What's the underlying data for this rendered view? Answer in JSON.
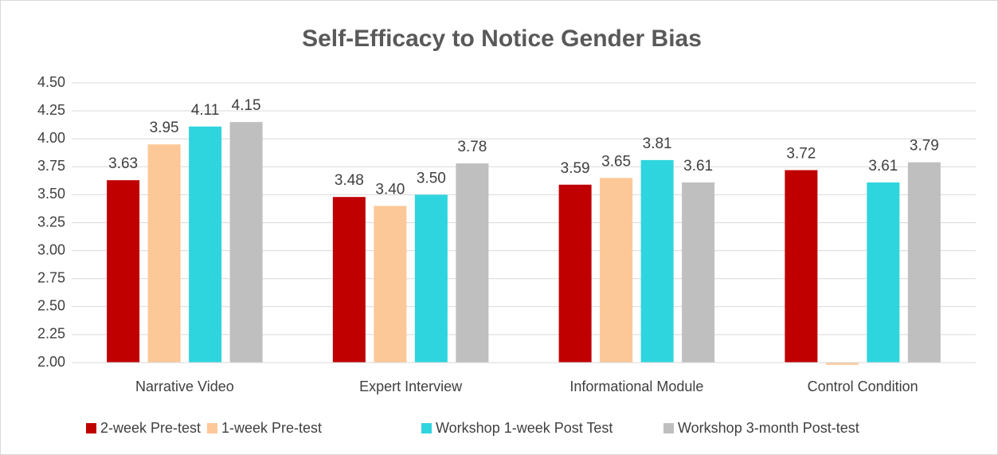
{
  "chart_data": {
    "type": "bar",
    "title": "Self-Efficacy to Notice Gender Bias",
    "categories": [
      "Narrative Video",
      "Expert Interview",
      "Informational Module",
      "Control Condition"
    ],
    "series": [
      {
        "name": "2-week Pre-test",
        "color": "#c00000",
        "values": [
          3.63,
          3.48,
          3.59,
          3.72
        ],
        "value_labels": [
          "3.63",
          "3.48",
          "3.59",
          "3.72"
        ]
      },
      {
        "name": "1-week Pre-test",
        "color": "#fdc897",
        "values": [
          3.95,
          3.4,
          3.65,
          1.98
        ],
        "value_labels": [
          "3.95",
          "3.40",
          "3.65",
          null
        ]
      },
      {
        "name": "Workshop 1-week Post Test",
        "color": "#2fd5de",
        "values": [
          4.11,
          3.5,
          3.81,
          3.61
        ],
        "value_labels": [
          "4.11",
          "3.50",
          "3.81",
          "3.61"
        ]
      },
      {
        "name": "Workshop 3-month Post-test",
        "color": "#bfbfbf",
        "values": [
          4.15,
          3.78,
          3.61,
          3.79
        ],
        "value_labels": [
          "4.15",
          "3.78",
          "3.61",
          "3.79"
        ]
      }
    ],
    "ylim": [
      2.0,
      4.5
    ],
    "yticks": [
      {
        "value": 2.0,
        "label": "2.00"
      },
      {
        "value": 2.25,
        "label": "2.25"
      },
      {
        "value": 2.5,
        "label": "2.50"
      },
      {
        "value": 2.75,
        "label": "2.75"
      },
      {
        "value": 3.0,
        "label": "3.00"
      },
      {
        "value": 3.25,
        "label": "3.25"
      },
      {
        "value": 3.5,
        "label": "3.50"
      },
      {
        "value": 3.75,
        "label": "3.75"
      },
      {
        "value": 4.0,
        "label": "4.00"
      },
      {
        "value": 4.25,
        "label": "4.25"
      },
      {
        "value": 4.5,
        "label": "4.50"
      }
    ],
    "grid": true,
    "legend": "bottom"
  }
}
